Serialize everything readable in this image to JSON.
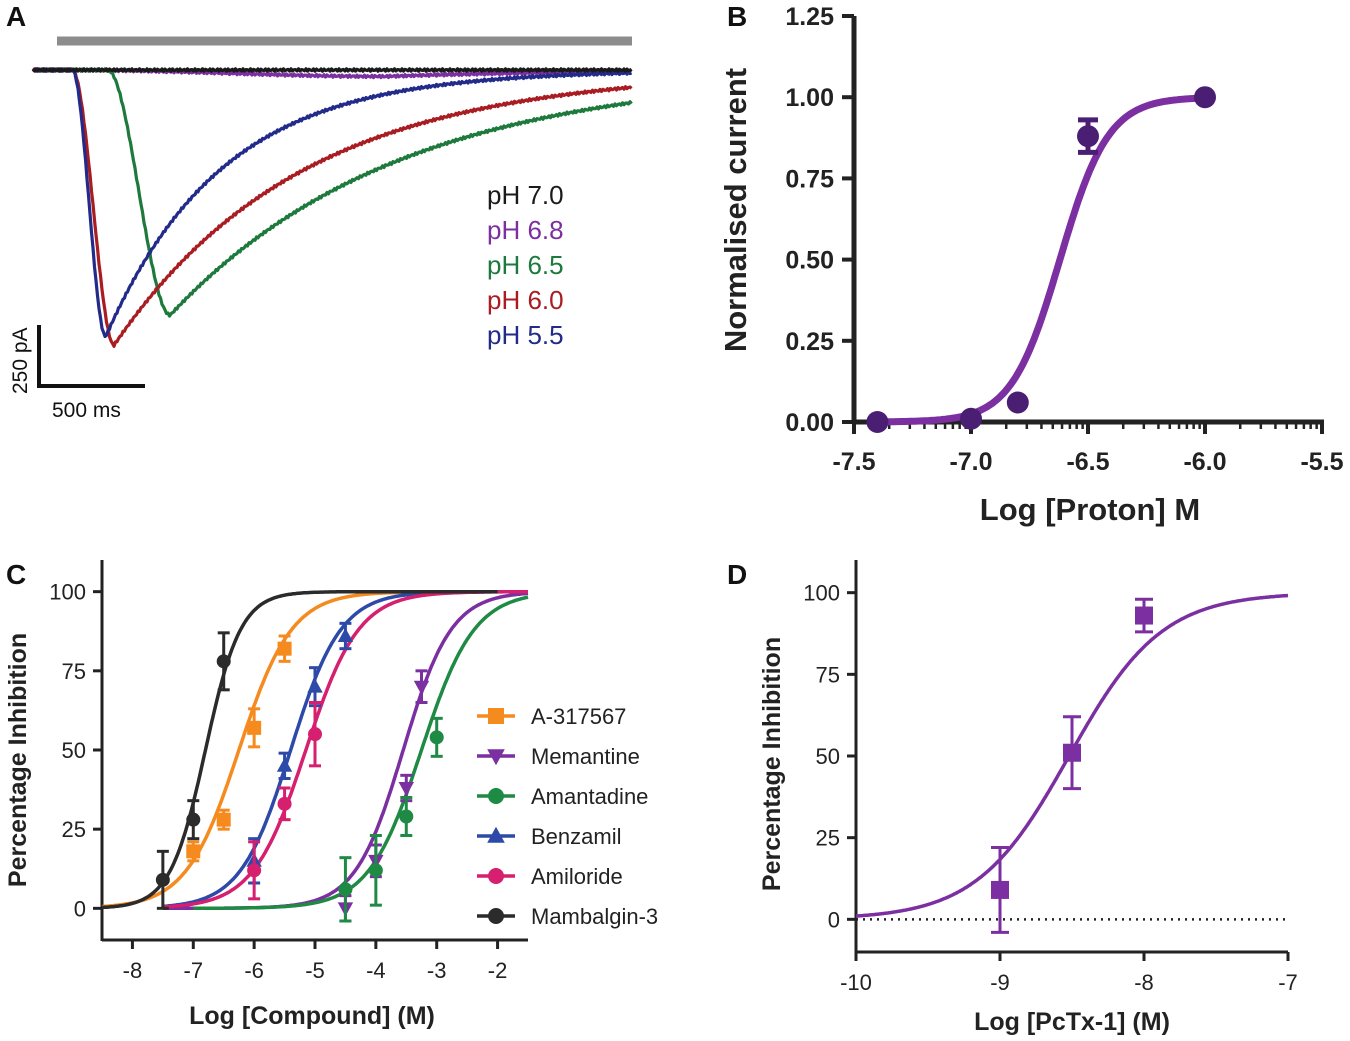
{
  "chart_data": [
    {
      "panel": "A",
      "type": "line",
      "title": "",
      "stimulus_bar": true,
      "legend": [
        "pH 7.0",
        "pH 6.8",
        "pH 6.5",
        "pH 6.0",
        "pH 5.5"
      ],
      "colors": {
        "pH 7.0": "#1a1a1a",
        "pH 6.8": "#7b2fa0",
        "pH 6.5": "#1e7a3c",
        "pH 6.0": "#a81c22",
        "pH 5.5": "#222a8a"
      },
      "scale_bar": {
        "current": "250 pA",
        "time": "500 ms"
      },
      "series": [
        {
          "name": "pH 7.0",
          "peak_pA": 0,
          "onset_ms": 0,
          "time_to_peak_ms": 0,
          "decay_tau_ms": 0
        },
        {
          "name": "pH 6.8",
          "peak_pA": 15,
          "onset_ms": 60,
          "time_to_peak_ms": 1500,
          "decay_tau_ms": 900
        },
        {
          "name": "pH 6.5",
          "peak_pA": 570,
          "onset_ms": 230,
          "time_to_peak_ms": 300,
          "decay_tau_ms": 1100
        },
        {
          "name": "pH 6.0",
          "peak_pA": 640,
          "onset_ms": 60,
          "time_to_peak_ms": 200,
          "decay_tau_ms": 900
        },
        {
          "name": "pH 5.5",
          "peak_pA": 620,
          "onset_ms": 60,
          "time_to_peak_ms": 160,
          "decay_tau_ms": 560
        }
      ]
    },
    {
      "panel": "B",
      "type": "scatter",
      "title": "",
      "xlabel": "Log [Proton] M",
      "ylabel": "Normalised current",
      "xlim": [
        -7.5,
        -5.5
      ],
      "ylim": [
        0,
        1.25
      ],
      "xticks": [
        "-7.5",
        "-7.0",
        "-6.5",
        "-6.0",
        "-5.5"
      ],
      "yticks": [
        "0.00",
        "0.25",
        "0.50",
        "0.75",
        "1.00",
        "1.25"
      ],
      "color": "#7b2fa0",
      "series": [
        {
          "name": "Normalised current",
          "x": [
            -7.4,
            -7.0,
            -6.8,
            -6.5,
            -6.0
          ],
          "y": [
            0.0,
            0.01,
            0.06,
            0.88,
            1.0
          ],
          "err": [
            0.0,
            0.0,
            0.0,
            0.05,
            0.0
          ],
          "fit": {
            "model": "hill",
            "logEC50": -6.62,
            "hill": 4.2,
            "bottom": 0,
            "top": 1.0,
            "xrange": [
              -7.4,
              -6.0
            ]
          }
        }
      ]
    },
    {
      "panel": "C",
      "type": "scatter",
      "title": "",
      "xlabel": "Log [Compound] (M)",
      "ylabel": "Percentage Inhibition",
      "xlim": [
        -8.5,
        -1.5
      ],
      "ylim": [
        -10,
        110
      ],
      "xticks": [
        "-8",
        "-7",
        "-6",
        "-5",
        "-4",
        "-3",
        "-2"
      ],
      "yticks": [
        "0",
        "25",
        "50",
        "75",
        "100"
      ],
      "legend": [
        "A-317567",
        "Memantine",
        "Amantadine",
        "Benzamil",
        "Amiloride",
        "Mambalgin-3"
      ],
      "series": [
        {
          "name": "A-317567",
          "marker": "square",
          "color": "#f58a1f",
          "x": [
            -7.0,
            -6.5,
            -6.0,
            -5.5
          ],
          "y": [
            18,
            28,
            57,
            82
          ],
          "err": [
            3,
            3,
            6,
            4
          ],
          "fit": {
            "logIC50": -6.25,
            "hill": 1.0,
            "xrange": [
              -8.5,
              -2.0
            ]
          }
        },
        {
          "name": "Memantine",
          "marker": "triangle-down",
          "color": "#7b2fa0",
          "x": [
            -4.5,
            -4.0,
            -3.5,
            -3.25
          ],
          "y": [
            0,
            15,
            38,
            70
          ],
          "err": [
            4,
            5,
            4,
            5
          ],
          "fit": {
            "logIC50": -3.55,
            "hill": 1.1,
            "xrange": [
              -7.5,
              -1.5
            ]
          }
        },
        {
          "name": "Amantadine",
          "marker": "circle",
          "color": "#1e8a44",
          "x": [
            -4.5,
            -4.0,
            -3.5,
            -3.0
          ],
          "y": [
            6,
            12,
            29,
            54
          ],
          "err": [
            10,
            11,
            6,
            6
          ],
          "fit": {
            "logIC50": -3.25,
            "hill": 1.0,
            "xrange": [
              -7.0,
              -1.5
            ]
          }
        },
        {
          "name": "Benzamil",
          "marker": "triangle-up",
          "color": "#2d4aa8",
          "x": [
            -6.0,
            -5.5,
            -5.0,
            -4.5
          ],
          "y": [
            15,
            45,
            70,
            86
          ],
          "err": [
            7,
            4,
            6,
            4
          ],
          "fit": {
            "logIC50": -5.4,
            "hill": 1.05,
            "xrange": [
              -7.5,
              -1.5
            ]
          }
        },
        {
          "name": "Amiloride",
          "marker": "circle",
          "color": "#d61f6e",
          "x": [
            -6.0,
            -5.5,
            -5.0
          ],
          "y": [
            12,
            33,
            55
          ],
          "err": [
            9,
            5,
            10
          ],
          "fit": {
            "logIC50": -5.15,
            "hill": 1.0,
            "xrange": [
              -7.5,
              -1.5
            ]
          }
        },
        {
          "name": "Mambalgin-3",
          "marker": "circle",
          "color": "#2b2b2b",
          "x": [
            -7.5,
            -7.0,
            -6.5
          ],
          "y": [
            9,
            28,
            78
          ],
          "err": [
            9,
            6,
            9
          ],
          "fit": {
            "logIC50": -6.8,
            "hill": 1.5,
            "xrange": [
              -8.5,
              -2.0
            ]
          }
        }
      ]
    },
    {
      "panel": "D",
      "type": "scatter",
      "title": "",
      "xlabel": "Log [PcTx-1] (M)",
      "ylabel": "Percentage Inhibition",
      "xlim": [
        -10,
        -7
      ],
      "ylim": [
        -10,
        110
      ],
      "xticks": [
        "-10",
        "-9",
        "-8",
        "-7"
      ],
      "yticks": [
        "0",
        "25",
        "50",
        "75",
        "100"
      ],
      "zero_line": "dotted",
      "color": "#7b2fa0",
      "series": [
        {
          "name": "PcTx-1",
          "marker": "square",
          "x": [
            -9.0,
            -8.5,
            -8.0
          ],
          "y": [
            9,
            51,
            93
          ],
          "err": [
            13,
            11,
            5
          ],
          "fit": {
            "logIC50": -8.52,
            "hill": 1.35,
            "xrange": [
              -10,
              -7
            ]
          }
        }
      ]
    }
  ]
}
